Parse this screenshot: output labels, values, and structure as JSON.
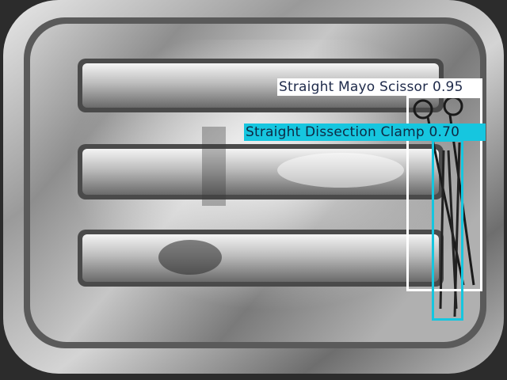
{
  "detections": [
    {
      "label": "Straight Mayo Scissor 0.95",
      "box_color": "#ffffff",
      "label_bg": "#ffffff",
      "label_text_color": "#1e2a4a"
    },
    {
      "label": "Straight Dissection Clamp 0.70",
      "box_color": "#16c6df",
      "label_bg": "#16c6df",
      "label_text_color": "#0e2a44"
    }
  ]
}
